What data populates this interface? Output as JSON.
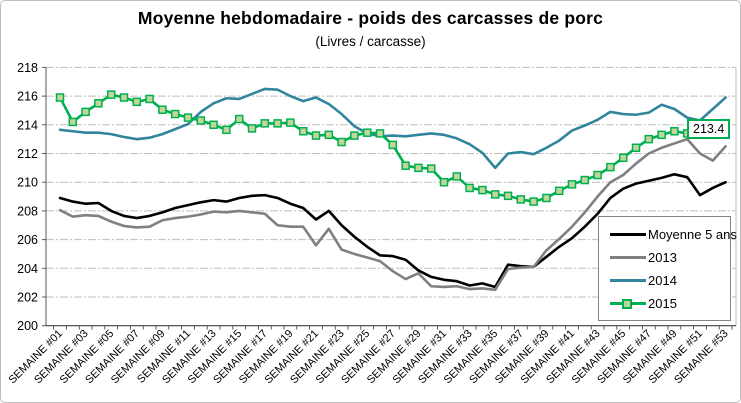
{
  "chart": {
    "title": "Moyenne hebdomadaire - poids des carcasses de porc",
    "subtitle": "(Livres / carcasse)",
    "annotation": "213.4"
  },
  "chart_data": {
    "type": "line",
    "title": "Moyenne hebdomadaire - poids des carcasses de porc",
    "subtitle": "(Livres / carcasse)",
    "ylabel": "",
    "xlabel": "",
    "ylim": [
      200,
      218
    ],
    "y_step": 2,
    "grid": true,
    "legend_position": "bottom-right",
    "weeks": 53,
    "y_tick_labels": [
      "200",
      "202",
      "204",
      "206",
      "208",
      "210",
      "212",
      "214",
      "216",
      "218"
    ],
    "x_tick_labels": [
      "SEMAINE #01",
      "SEMAINE #03",
      "SEMAINE #05",
      "SEMAINE #07",
      "SEMAINE #09",
      "SEMAINE #11",
      "SEMAINE #13",
      "SEMAINE #15",
      "SEMAINE #17",
      "SEMAINE #19",
      "SEMAINE #21",
      "SEMAINE #23",
      "SEMAINE #25",
      "SEMAINE #27",
      "SEMAINE #29",
      "SEMAINE #31",
      "SEMAINE #33",
      "SEMAINE #35",
      "SEMAINE #37",
      "SEMAINE #39",
      "SEMAINE #41",
      "SEMAINE #43",
      "SEMAINE #45",
      "SEMAINE #47",
      "SEMAINE #49",
      "SEMAINE #51",
      "SEMAINE #53"
    ],
    "annotation": {
      "text": "213.4",
      "series": "2015",
      "week": 50
    },
    "series": [
      {
        "name": "Moyenne 5 ans",
        "color": "#000000",
        "marker": false,
        "values": [
          208.9,
          208.65,
          208.5,
          208.55,
          208.0,
          207.65,
          207.5,
          207.65,
          207.9,
          208.2,
          208.4,
          208.6,
          208.75,
          208.65,
          208.9,
          209.05,
          209.1,
          208.9,
          208.5,
          208.2,
          207.4,
          208.0,
          207.0,
          206.2,
          205.5,
          204.9,
          204.85,
          204.6,
          203.85,
          203.4,
          203.2,
          203.1,
          202.8,
          202.95,
          202.7,
          204.25,
          204.15,
          204.1,
          204.8,
          205.5,
          206.1,
          206.9,
          207.8,
          208.9,
          209.55,
          209.9,
          210.1,
          210.3,
          210.55,
          210.35,
          209.1,
          209.6,
          210.0
        ]
      },
      {
        "name": "2013",
        "color": "#808080",
        "marker": false,
        "values": [
          208.05,
          207.6,
          207.7,
          207.65,
          207.25,
          206.95,
          206.85,
          206.9,
          207.35,
          207.5,
          207.6,
          207.75,
          207.95,
          207.9,
          208.0,
          207.9,
          207.8,
          207.0,
          206.9,
          206.9,
          205.6,
          206.75,
          205.3,
          205.0,
          204.75,
          204.5,
          203.8,
          203.25,
          203.65,
          202.75,
          202.7,
          202.75,
          202.55,
          202.6,
          202.5,
          203.95,
          204.05,
          204.1,
          205.25,
          206.05,
          206.9,
          207.9,
          209.0,
          210.0,
          210.5,
          211.3,
          212.0,
          212.4,
          212.7,
          213.0,
          212.0,
          211.5,
          212.5
        ]
      },
      {
        "name": "2014",
        "color": "#31859C",
        "marker": false,
        "values": [
          213.65,
          213.55,
          213.45,
          213.45,
          213.35,
          213.15,
          213.0,
          213.1,
          213.35,
          213.7,
          214.05,
          214.9,
          215.5,
          215.85,
          215.8,
          216.15,
          216.5,
          216.45,
          216.0,
          215.65,
          215.9,
          215.45,
          214.75,
          213.9,
          213.4,
          213.2,
          213.25,
          213.2,
          213.3,
          213.4,
          213.3,
          213.05,
          212.65,
          212.05,
          211.0,
          212.0,
          212.1,
          211.95,
          212.4,
          212.9,
          213.6,
          213.95,
          214.35,
          214.9,
          214.75,
          214.7,
          214.85,
          215.4,
          215.1,
          214.5,
          214.3,
          215.1,
          215.9
        ]
      },
      {
        "name": "2015",
        "color": "#00B050",
        "marker": true,
        "marker_fill": "#C2D69B",
        "values": [
          215.9,
          214.2,
          214.9,
          215.5,
          216.1,
          215.9,
          215.6,
          215.8,
          215.05,
          214.75,
          214.5,
          214.3,
          214.0,
          213.65,
          214.4,
          213.75,
          214.1,
          214.1,
          214.15,
          213.55,
          213.25,
          213.3,
          212.8,
          213.25,
          213.45,
          213.4,
          212.6,
          211.15,
          211.0,
          210.95,
          210.0,
          210.4,
          209.6,
          209.45,
          209.15,
          209.05,
          208.8,
          208.65,
          208.9,
          209.4,
          209.85,
          210.15,
          210.5,
          211.05,
          211.7,
          212.4,
          213.0,
          213.3,
          213.55,
          213.4
        ]
      }
    ]
  }
}
